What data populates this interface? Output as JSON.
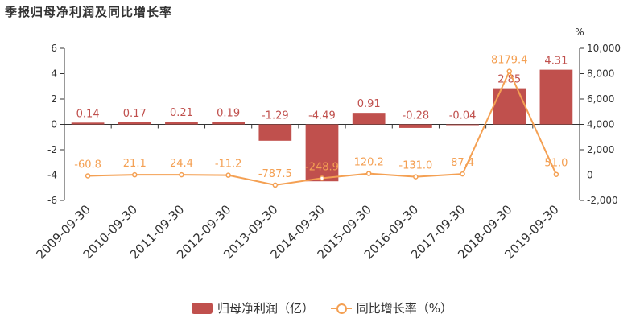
{
  "title": "季报归母净利润及同比增长率",
  "colors": {
    "bar": "#c0504d",
    "line": "#f4a053",
    "axis": "#333333"
  },
  "chart_data": {
    "type": "bar+line",
    "categories": [
      "2009-09-30",
      "2010-09-30",
      "2011-09-30",
      "2012-09-30",
      "2013-09-30",
      "2014-09-30",
      "2015-09-30",
      "2016-09-30",
      "2017-09-30",
      "2018-09-30",
      "2019-09-30"
    ],
    "series": [
      {
        "name": "归母净利润（亿）",
        "type": "bar",
        "axis": "left",
        "values": [
          0.14,
          0.17,
          0.21,
          0.19,
          -1.29,
          -4.49,
          0.91,
          -0.28,
          -0.04,
          2.85,
          4.31
        ],
        "labels": [
          "0.14",
          "0.17",
          "0.21",
          "0.19",
          "-1.29",
          "-4.49",
          "0.91",
          "-0.28",
          "-0.04",
          "2.85",
          "4.31"
        ]
      },
      {
        "name": "同比增长率（%）",
        "type": "line",
        "axis": "right",
        "values": [
          -60.8,
          21.1,
          24.4,
          -11.2,
          -787.5,
          -248.9,
          120.2,
          -131.0,
          87.4,
          8179.4,
          51.0
        ],
        "labels": [
          "-60.8",
          "21.1",
          "24.4",
          "-11.2",
          "-787.5",
          "-248.9",
          "120.2",
          "-131.0",
          "87.4",
          "8179.4",
          "51.0"
        ]
      }
    ],
    "y_left": {
      "min": -6,
      "max": 6,
      "ticks": [
        "6",
        "4",
        "2",
        "0",
        "-2",
        "-4",
        "-6"
      ]
    },
    "y_right": {
      "min": -2000,
      "max": 10000,
      "unit": "%",
      "ticks": [
        "10,000",
        "8,000",
        "6,000",
        "4,000",
        "2,000",
        "0",
        "-2,000"
      ]
    },
    "grid": false,
    "legend_position": "bottom-center"
  }
}
